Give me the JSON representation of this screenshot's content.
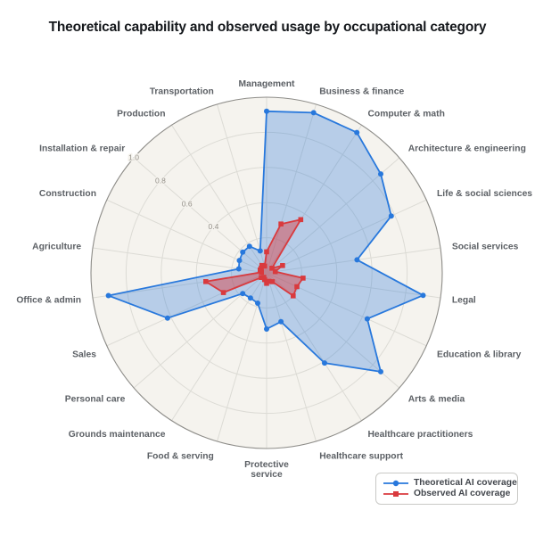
{
  "page": {
    "title": "Theoretical capability and observed usage by occupational category"
  },
  "chart_data": {
    "type": "radar",
    "title": "Theoretical capability and observed usage by occupational category",
    "categories": [
      "Management",
      "Business & finance",
      "Computer & math",
      "Architecture & engineering",
      "Life & social sciences",
      "Social services",
      "Legal",
      "Education & library",
      "Arts & media",
      "Healthcare practitioners",
      "Healthcare support",
      "Protective service",
      "Food & serving",
      "Grounds maintenance",
      "Personal care",
      "Sales",
      "Office & admin",
      "Agriculture",
      "Construction",
      "Installation & repair",
      "Production",
      "Transportation"
    ],
    "series": [
      {
        "name": "Theoretical AI coverage",
        "marker": "circle",
        "color": "#2878dc",
        "fill_opacity": 0.3,
        "values": [
          0.92,
          0.95,
          0.95,
          0.86,
          0.78,
          0.52,
          0.9,
          0.63,
          0.86,
          0.61,
          0.29,
          0.32,
          0.18,
          0.17,
          0.18,
          0.62,
          0.91,
          0.16,
          0.17,
          0.18,
          0.18,
          0.13
        ]
      },
      {
        "name": "Observed AI coverage",
        "marker": "square",
        "color": "#d93a3e",
        "fill_opacity": 0.45,
        "values": [
          0.12,
          0.29,
          0.36,
          0.04,
          0.1,
          0.05,
          0.21,
          0.19,
          0.2,
          0.06,
          0.05,
          0.06,
          0.04,
          0.03,
          0.04,
          0.27,
          0.35,
          0.03,
          0.04,
          0.04,
          0.05,
          0.04
        ]
      }
    ],
    "radial_ticks": [
      "0.4",
      "0.6",
      "0.8",
      "1.0"
    ],
    "radial_range": [
      0,
      1
    ],
    "tick_axis_category": "Installation & repair",
    "grid": true,
    "rings": [
      0.2,
      0.4,
      0.6,
      0.8,
      1.0
    ],
    "legend_position": "bottom-right",
    "wrap_labels": [
      "Protective service"
    ]
  },
  "colors": {
    "plot_bg": "#f5f3ee",
    "grid_line": "#dcdbd5",
    "outer_ring": "#8e8d89",
    "tick_label": "#95918a",
    "category_label": "#5c6065",
    "title_text": "#15181c",
    "legend_border": "#c9c9c6",
    "legend_text": "#42464c"
  }
}
